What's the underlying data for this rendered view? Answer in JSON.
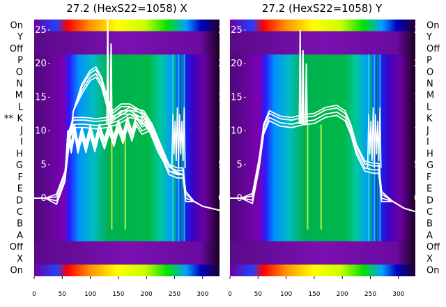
{
  "chart_data": [
    {
      "type": "heatmap",
      "title": "27.2 (HexS22=1058) X",
      "xlabel": "",
      "ylabel": "",
      "x_ticks": [
        0,
        50,
        100,
        150,
        200,
        250,
        300
      ],
      "xlim": [
        0,
        330
      ],
      "overlay_y_ticks": [
        0,
        5,
        10,
        15,
        20,
        25
      ],
      "row_labels": [
        "On",
        "Y",
        "Off",
        "P",
        "O",
        "N",
        "M",
        "L",
        "K",
        "J",
        "I",
        "H",
        "G",
        "F",
        "E",
        "D",
        "C",
        "B",
        "A",
        "Off",
        "X",
        "On"
      ],
      "row_marker": "**",
      "row_marker_row": "K",
      "beam_start": 50,
      "beam_end": 270,
      "trace_families": [
        {
          "name": "",
          "points": [
            [
              0,
              0
            ],
            [
              20,
              0
            ],
            [
              40,
              -0.4
            ],
            [
              55,
              3
            ],
            [
              62,
              9
            ],
            [
              70,
              11
            ],
            [
              90,
              11
            ],
            [
              110,
              10.8
            ],
            [
              130,
              11
            ],
            [
              150,
              11.5
            ],
            [
              170,
              12.5
            ],
            [
              195,
              12
            ],
            [
              210,
              10
            ],
            [
              225,
              7
            ],
            [
              240,
              4
            ],
            [
              255,
              3.5
            ],
            [
              265,
              3.5
            ],
            [
              270,
              0
            ],
            [
              285,
              -0.5
            ],
            [
              300,
              -1.2
            ],
            [
              330,
              -1.8
            ]
          ]
        },
        {
          "name": "",
          "points": [
            [
              55,
              3
            ],
            [
              60,
              10
            ],
            [
              66,
              7.2
            ],
            [
              72,
              10
            ],
            [
              78,
              7.2
            ],
            [
              85,
              9.5
            ],
            [
              92,
              7.3
            ],
            [
              100,
              9.8
            ],
            [
              108,
              7.4
            ],
            [
              116,
              10
            ],
            [
              125,
              7.8
            ],
            [
              134,
              10.2
            ],
            [
              142,
              8.2
            ],
            [
              150,
              10.6
            ],
            [
              158,
              8.6
            ],
            [
              166,
              11
            ],
            [
              174,
              9
            ],
            [
              182,
              11.3
            ],
            [
              192,
              10
            ],
            [
              205,
              10.5
            ],
            [
              220,
              7
            ],
            [
              240,
              4
            ],
            [
              265,
              3.5
            ]
          ]
        },
        {
          "name": "",
          "points": [
            [
              55,
              3
            ],
            [
              70,
              13
            ],
            [
              85,
              16
            ],
            [
              100,
              18
            ],
            [
              110,
              18.5
            ],
            [
              120,
              17
            ],
            [
              130,
              14
            ],
            [
              140,
              12
            ],
            [
              155,
              13
            ],
            [
              170,
              13
            ],
            [
              190,
              12
            ],
            [
              210,
              10
            ],
            [
              230,
              6
            ],
            [
              250,
              4
            ],
            [
              265,
              3.5
            ]
          ]
        }
      ],
      "spikes": [
        {
          "x": 131,
          "y": 27
        },
        {
          "x": 137,
          "y": 23
        }
      ]
    },
    {
      "type": "heatmap",
      "title": "27.2 (HexS22=1058) Y",
      "xlabel": "",
      "ylabel": "",
      "x_ticks": [
        0,
        50,
        100,
        150,
        200,
        250,
        300
      ],
      "xlim": [
        0,
        330
      ],
      "overlay_y_ticks": [
        0,
        5,
        10,
        15,
        20,
        25
      ],
      "row_labels": [
        "On",
        "Y",
        "Off",
        "P",
        "O",
        "N",
        "M",
        "L",
        "K",
        "J",
        "I",
        "H",
        "G",
        "F",
        "E",
        "D",
        "C",
        "B",
        "A",
        "Off",
        "X",
        "On"
      ],
      "beam_start": 50,
      "beam_end": 270,
      "trace_families": [
        {
          "name": "",
          "points": [
            [
              0,
              0
            ],
            [
              20,
              0
            ],
            [
              40,
              -0.3
            ],
            [
              52,
              5
            ],
            [
              60,
              10
            ],
            [
              70,
              12
            ],
            [
              90,
              11.2
            ],
            [
              110,
              11
            ],
            [
              130,
              11.4
            ],
            [
              150,
              11.6
            ],
            [
              170,
              12.5
            ],
            [
              190,
              12.8
            ],
            [
              205,
              12
            ],
            [
              215,
              10
            ],
            [
              225,
              7
            ],
            [
              240,
              4.5
            ],
            [
              255,
              4.2
            ],
            [
              265,
              4.2
            ],
            [
              270,
              0
            ],
            [
              290,
              -0.5
            ],
            [
              310,
              -1.5
            ],
            [
              330,
              -2
            ]
          ]
        }
      ],
      "spikes": [
        {
          "x": 125,
          "y": 25
        },
        {
          "x": 130,
          "y": 22
        },
        {
          "x": 136,
          "y": 20
        }
      ]
    }
  ]
}
